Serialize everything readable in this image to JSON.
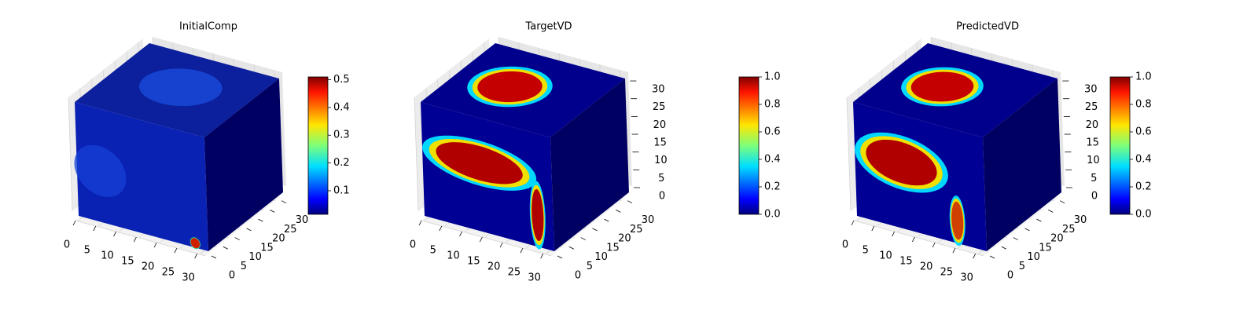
{
  "chart_data": [
    {
      "type": "voxel3d",
      "title": "InitialComp",
      "cmap": "jet",
      "xlim": [
        0,
        32
      ],
      "ylim": [
        0,
        32
      ],
      "zlim": [
        0,
        32
      ],
      "xticks": [
        0,
        5,
        10,
        15,
        20,
        25,
        30
      ],
      "yticks": [
        0,
        5,
        10,
        15,
        20,
        25,
        30
      ],
      "colorbar": {
        "clim": [
          0.015,
          0.51
        ],
        "ticks": [
          0.1,
          0.2,
          0.3,
          0.4,
          0.5
        ]
      }
    },
    {
      "type": "voxel3d",
      "title": "TargetVD",
      "cmap": "jet",
      "xlim": [
        0,
        32
      ],
      "ylim": [
        0,
        32
      ],
      "zlim": [
        0,
        32
      ],
      "xticks": [
        0,
        5,
        10,
        15,
        20,
        25,
        30
      ],
      "yticks": [
        0,
        5,
        10,
        15,
        20,
        25,
        30
      ],
      "zticks": [
        0,
        5,
        10,
        15,
        20,
        25,
        30
      ],
      "colorbar": {
        "clim": [
          0,
          1
        ],
        "ticks": [
          {
            "value": 0,
            "label": "0.0"
          },
          0.2,
          0.4,
          0.6,
          0.8,
          {
            "value": 1,
            "label": "1.0"
          }
        ]
      }
    },
    {
      "type": "voxel3d",
      "title": "PredictedVD",
      "cmap": "jet",
      "xlim": [
        0,
        32
      ],
      "ylim": [
        0,
        32
      ],
      "zlim": [
        0,
        32
      ],
      "xticks": [
        0,
        5,
        10,
        15,
        20,
        25,
        30
      ],
      "yticks": [
        0,
        5,
        10,
        15,
        20,
        25,
        30
      ],
      "zticks": [
        0,
        5,
        10,
        15,
        20,
        25,
        30
      ],
      "colorbar": {
        "clim": [
          0,
          1
        ],
        "ticks": [
          {
            "value": 0,
            "label": "0.0"
          },
          0.2,
          0.4,
          0.6,
          0.8,
          {
            "value": 1,
            "label": "1.0"
          }
        ]
      }
    }
  ]
}
